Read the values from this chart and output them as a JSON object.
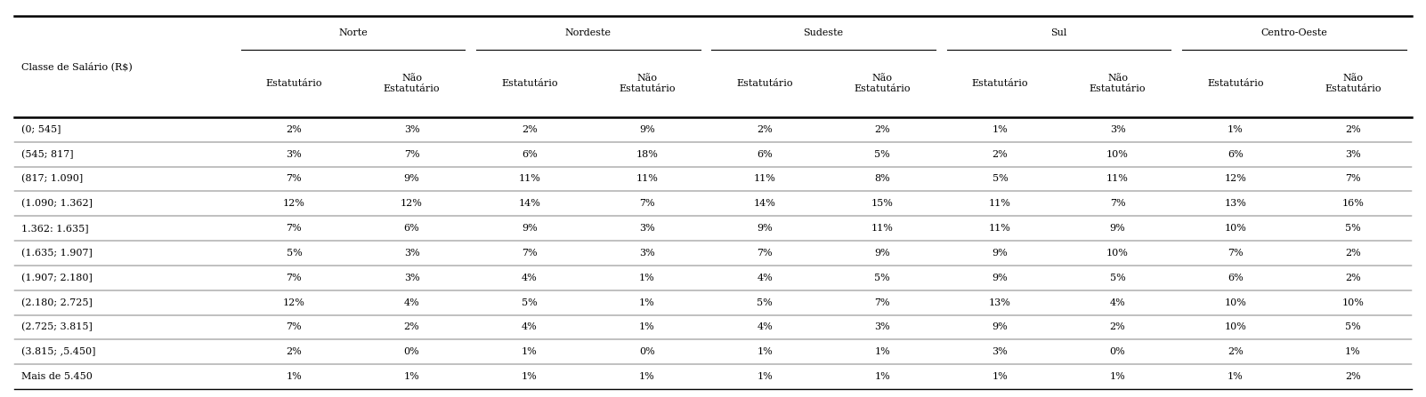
{
  "header_col0": "Classe de Salário (R$)",
  "regions": [
    "Norte",
    "Nordeste",
    "Sudeste",
    "Sul",
    "Centro-Oeste"
  ],
  "sub_headers": [
    "Estatutário",
    "Não\nEstatutário"
  ],
  "rows": [
    [
      "(0; 545]",
      "2%",
      "3%",
      "2%",
      "9%",
      "2%",
      "2%",
      "1%",
      "3%",
      "1%",
      "2%"
    ],
    [
      "(545; 817]",
      "3%",
      "7%",
      "6%",
      "18%",
      "6%",
      "5%",
      "2%",
      "10%",
      "6%",
      "3%"
    ],
    [
      "(817; 1.090]",
      "7%",
      "9%",
      "11%",
      "11%",
      "11%",
      "8%",
      "5%",
      "11%",
      "12%",
      "7%"
    ],
    [
      "(1.090; 1.362]",
      "12%",
      "12%",
      "14%",
      "7%",
      "14%",
      "15%",
      "11%",
      "7%",
      "13%",
      "16%"
    ],
    [
      "1.362: 1.635]",
      "7%",
      "6%",
      "9%",
      "3%",
      "9%",
      "11%",
      "11%",
      "9%",
      "10%",
      "5%"
    ],
    [
      "(1.635; 1.907]",
      "5%",
      "3%",
      "7%",
      "3%",
      "7%",
      "9%",
      "9%",
      "10%",
      "7%",
      "2%"
    ],
    [
      "(1.907; 2.180]",
      "7%",
      "3%",
      "4%",
      "1%",
      "4%",
      "5%",
      "9%",
      "5%",
      "6%",
      "2%"
    ],
    [
      "(2.180; 2.725]",
      "12%",
      "4%",
      "5%",
      "1%",
      "5%",
      "7%",
      "13%",
      "4%",
      "10%",
      "10%"
    ],
    [
      "(2.725; 3.815]",
      "7%",
      "2%",
      "4%",
      "1%",
      "4%",
      "3%",
      "9%",
      "2%",
      "10%",
      "5%"
    ],
    [
      "(3.815; ,5.450]",
      "2%",
      "0%",
      "1%",
      "0%",
      "1%",
      "1%",
      "3%",
      "0%",
      "2%",
      "1%"
    ],
    [
      "Mais de 5.450",
      "1%",
      "1%",
      "1%",
      "1%",
      "1%",
      "1%",
      "1%",
      "1%",
      "1%",
      "2%"
    ]
  ],
  "figsize": [
    16.02,
    4.47
  ],
  "dpi": 100,
  "font_size": 8.0,
  "bg_color": "#ffffff",
  "line_color": "#000000"
}
